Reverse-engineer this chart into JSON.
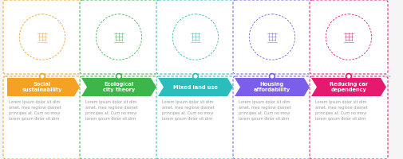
{
  "steps": [
    {
      "title": "Social\nsustainability",
      "color": "#F5A124"
    },
    {
      "title": "Ecological\ncity theory",
      "color": "#3CB54A"
    },
    {
      "title": "Mixed land use",
      "color": "#2BBCBC"
    },
    {
      "title": "Housing\naffordability",
      "color": "#7B5EEA"
    },
    {
      "title": "Reducing car\ndependency",
      "color": "#E5196E"
    }
  ],
  "lorem_text": "Lorem ipsum dolor sit dim\namet, mea regione diamet\nprincipes at. Cum no movi\nlorem ipsum dolor sit dim",
  "background_color": "#f5f5f5",
  "card_facecolor": "#ffffff",
  "title_text_color": "#ffffff",
  "body_text_color": "#999999",
  "n_steps": 5,
  "timeline_color": "#d0d0d0",
  "dot_outline_color": "#ffffff"
}
